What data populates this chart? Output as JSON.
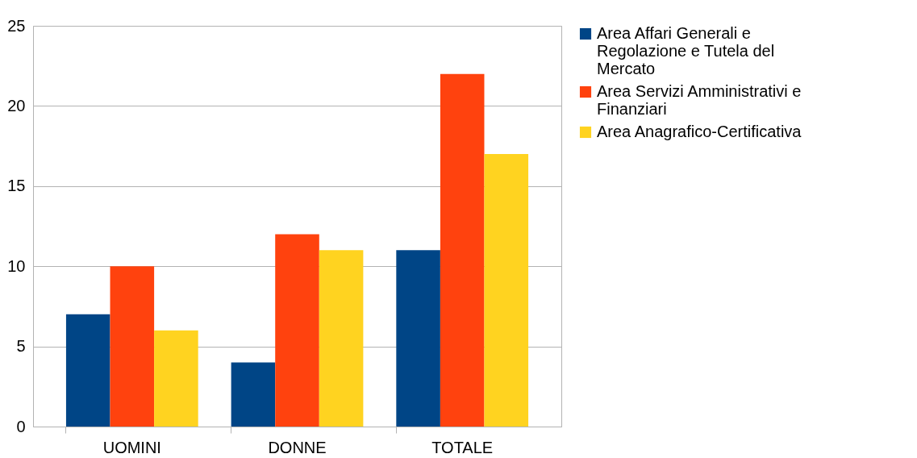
{
  "chart_data": {
    "type": "bar",
    "categories": [
      "UOMINI",
      "DONNE",
      "TOTALE"
    ],
    "series": [
      {
        "name": "Area Affari Generali e Regolazione e Tutela del Mercato",
        "color": "#004586",
        "values": [
          7,
          4,
          11
        ]
      },
      {
        "name": "Area Servizi  Amministrativi e Finanziari",
        "color": "#ff420e",
        "values": [
          10,
          12,
          22
        ]
      },
      {
        "name": "Area Anagrafico-Certificativa",
        "color": "#ffd320",
        "values": [
          6,
          11,
          17
        ]
      }
    ],
    "ylim": [
      0,
      25
    ],
    "yticks": [
      0,
      5,
      10,
      15,
      20,
      25
    ],
    "grid": "y",
    "legend": "right"
  }
}
